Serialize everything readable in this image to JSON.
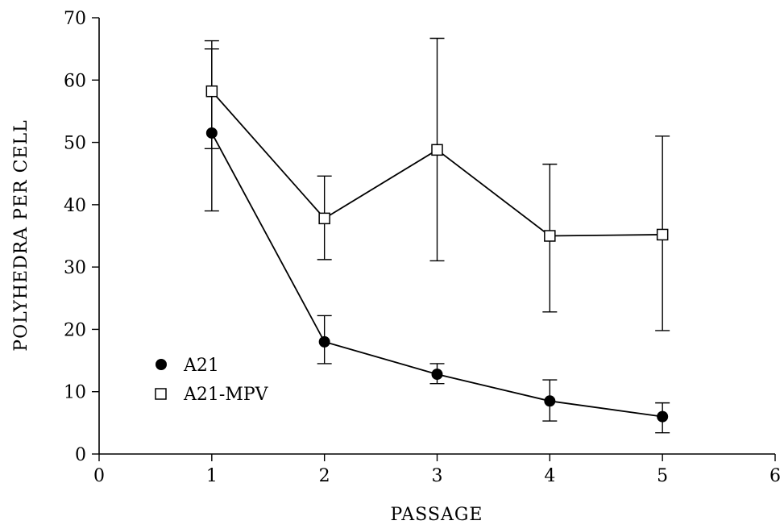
{
  "chart_data": {
    "type": "line",
    "title": "",
    "xlabel": "PASSAGE",
    "ylabel": "POLYHEDRA PER CELL",
    "xlim": [
      0,
      6
    ],
    "ylim": [
      0,
      70
    ],
    "xticks": [
      0,
      1,
      2,
      3,
      4,
      5,
      6
    ],
    "yticks": [
      0,
      10,
      20,
      30,
      40,
      50,
      60,
      70
    ],
    "grid": false,
    "legend_position": "lower-left",
    "series": [
      {
        "name": "A21",
        "marker": "filled-circle",
        "color": "#000000",
        "x": [
          1,
          2,
          3,
          4,
          5
        ],
        "y": [
          51.5,
          18,
          12.8,
          8.5,
          6
        ],
        "err_low": [
          39,
          14.5,
          11.3,
          5.3,
          3.4
        ],
        "err_high": [
          65,
          22.2,
          14.5,
          11.9,
          8.2
        ]
      },
      {
        "name": "A21-MPV",
        "marker": "open-square",
        "color": "#000000",
        "x": [
          1,
          2,
          3,
          4,
          5
        ],
        "y": [
          58.2,
          37.8,
          48.8,
          35,
          35.2
        ],
        "err_low": [
          49,
          31.2,
          31,
          22.8,
          19.8
        ],
        "err_high": [
          66.3,
          44.6,
          66.7,
          46.5,
          51
        ]
      }
    ]
  }
}
